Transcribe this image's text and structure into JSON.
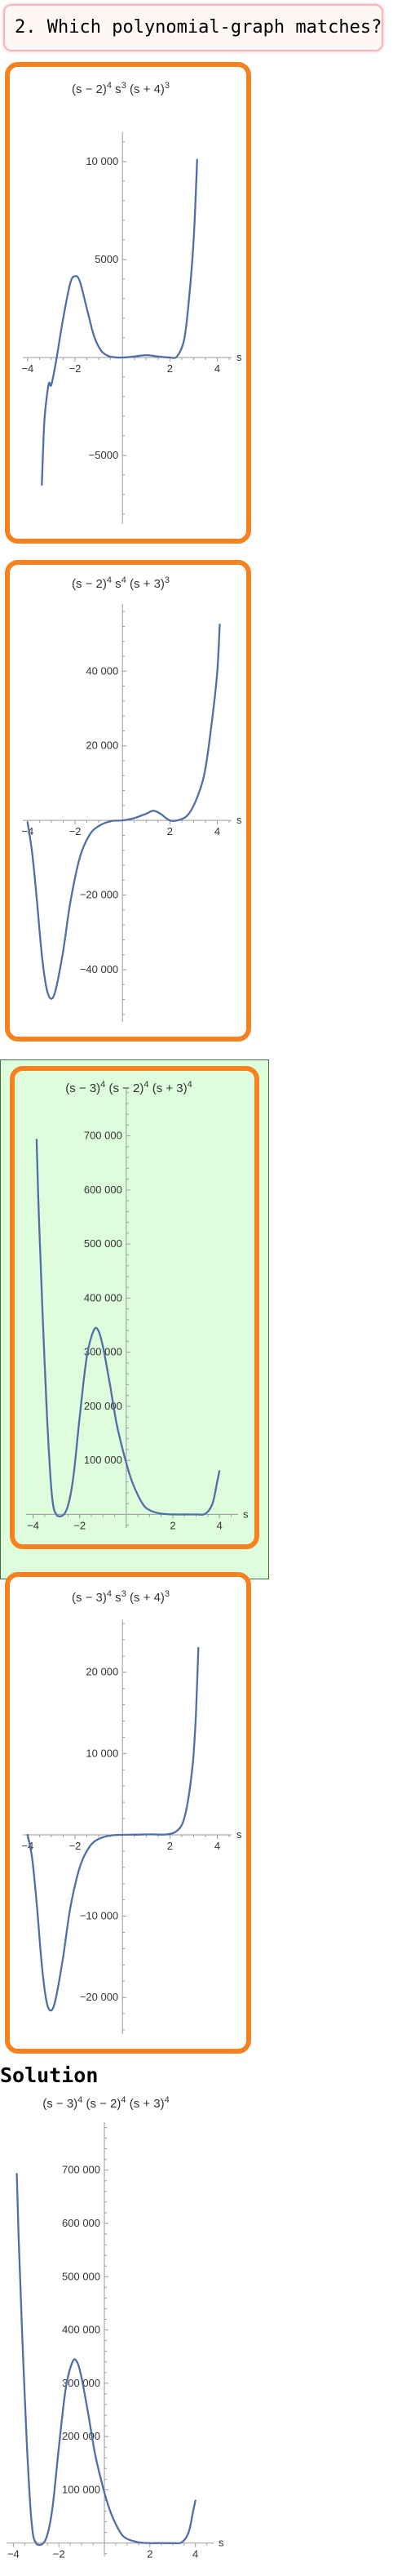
{
  "question": {
    "label": "2. Which polynomial-graph matches?"
  },
  "solution": {
    "label": "Solution"
  },
  "charts": [
    {
      "type": "line",
      "title": {
        "base": "(s − 2)",
        "exp1": "4",
        "mid1": " s",
        "exp2": "3",
        "mid2": " (s + 4)",
        "exp3": "3"
      },
      "xlabel": "s",
      "xlim": [
        -4.2,
        4.6
      ],
      "ylim": [
        -8500,
        11500
      ],
      "xticks": [
        -4,
        -2,
        2,
        4
      ],
      "xtick_labels": [
        "−4",
        "−2",
        "2",
        "4"
      ],
      "yticks": [
        10000,
        5000,
        -5000
      ],
      "ytick_labels": [
        "10 000",
        "5000",
        "−5000"
      ],
      "series": [
        {
          "points": [
            [
              -3.4,
              -6500
            ],
            [
              -3.3,
              -3400
            ],
            [
              -3.2,
              -2100
            ],
            [
              -3.1,
              -1300
            ],
            [
              -3.0,
              -1400
            ],
            [
              -2.8,
              -200
            ],
            [
              -2.5,
              2000
            ],
            [
              -2.2,
              3800
            ],
            [
              -2.0,
              4150
            ],
            [
              -1.8,
              3900
            ],
            [
              -1.5,
              2500
            ],
            [
              -1.2,
              1100
            ],
            [
              -0.9,
              350
            ],
            [
              -0.6,
              80
            ],
            [
              -0.3,
              10
            ],
            [
              0.0,
              0
            ],
            [
              0.5,
              50
            ],
            [
              1.0,
              120
            ],
            [
              1.5,
              50
            ],
            [
              2.0,
              0
            ],
            [
              2.3,
              60
            ],
            [
              2.6,
              900
            ],
            [
              2.8,
              2900
            ],
            [
              3.0,
              6000
            ],
            [
              3.15,
              10100
            ]
          ]
        }
      ]
    },
    {
      "type": "line",
      "title": {
        "base": "(s − 2)",
        "exp1": "4",
        "mid1": " s",
        "exp2": "4",
        "mid2": " (s + 3)",
        "exp3": "3"
      },
      "xlabel": "s",
      "xlim": [
        -4.2,
        4.6
      ],
      "ylim": [
        -54000,
        58000
      ],
      "xticks": [
        -4,
        -2,
        2,
        4
      ],
      "xtick_labels": [
        "−4",
        "−2",
        "2",
        "4"
      ],
      "yticks": [
        40000,
        20000,
        -20000,
        -40000
      ],
      "ytick_labels": [
        "40 000",
        "20 000",
        "−20 000",
        "−40 000"
      ],
      "series": [
        {
          "points": [
            [
              -4.0,
              -500
            ],
            [
              -3.8,
              -9000
            ],
            [
              -3.6,
              -22000
            ],
            [
              -3.4,
              -36000
            ],
            [
              -3.2,
              -45000
            ],
            [
              -3.0,
              -47800
            ],
            [
              -2.8,
              -45000
            ],
            [
              -2.5,
              -35000
            ],
            [
              -2.2,
              -22000
            ],
            [
              -1.8,
              -10000
            ],
            [
              -1.4,
              -4000
            ],
            [
              -1.0,
              -1500
            ],
            [
              -0.5,
              -200
            ],
            [
              0.0,
              0
            ],
            [
              0.5,
              600
            ],
            [
              1.0,
              1800
            ],
            [
              1.3,
              2600
            ],
            [
              1.6,
              1800
            ],
            [
              2.0,
              0
            ],
            [
              2.4,
              150
            ],
            [
              2.8,
              1800
            ],
            [
              3.2,
              7000
            ],
            [
              3.5,
              14000
            ],
            [
              3.8,
              28000
            ],
            [
              4.0,
              40000
            ],
            [
              4.1,
              52500
            ]
          ]
        }
      ]
    },
    {
      "type": "line",
      "title": {
        "base": "(s − 3)",
        "exp1": "4",
        "mid1": " (s − 2)",
        "exp2": "4",
        "mid2": " (s + 3)",
        "exp3": "4"
      },
      "xlabel": "s",
      "xlim": [
        -4.3,
        4.8
      ],
      "ylim": [
        -25000,
        790000
      ],
      "xticks": [
        -4,
        -2,
        2,
        4
      ],
      "xtick_labels": [
        "−4",
        "−2",
        "2",
        "4"
      ],
      "yticks": [
        100000,
        200000,
        300000,
        400000,
        500000,
        600000,
        700000
      ],
      "ytick_labels": [
        "100 000",
        "200 000",
        "300 000",
        "400 000",
        "500 000",
        "600 000",
        "700 000"
      ],
      "series": [
        {
          "points": [
            [
              -3.85,
              693000
            ],
            [
              -3.75,
              550000
            ],
            [
              -3.6,
              380000
            ],
            [
              -3.4,
              180000
            ],
            [
              -3.2,
              40000
            ],
            [
              -3.0,
              0
            ],
            [
              -2.6,
              5000
            ],
            [
              -2.3,
              60000
            ],
            [
              -2.0,
              180000
            ],
            [
              -1.7,
              290000
            ],
            [
              -1.4,
              340000
            ],
            [
              -1.2,
              340000
            ],
            [
              -1.0,
              310000
            ],
            [
              -0.7,
              240000
            ],
            [
              -0.4,
              165000
            ],
            [
              0.0,
              95000
            ],
            [
              0.3,
              55000
            ],
            [
              0.7,
              20000
            ],
            [
              1.0,
              8000
            ],
            [
              1.5,
              1500
            ],
            [
              2.0,
              0
            ],
            [
              2.5,
              100
            ],
            [
              3.0,
              0
            ],
            [
              3.4,
              1500
            ],
            [
              3.7,
              20000
            ],
            [
              3.9,
              60000
            ],
            [
              4.0,
              80000
            ]
          ]
        }
      ]
    },
    {
      "type": "line",
      "title": {
        "base": "(s − 3)",
        "exp1": "4",
        "mid1": " s",
        "exp2": "3",
        "mid2": " (s + 4)",
        "exp3": "3"
      },
      "xlabel": "s",
      "xlim": [
        -4.2,
        4.6
      ],
      "ylim": [
        -24500,
        26500
      ],
      "xticks": [
        -4,
        -2,
        2,
        4
      ],
      "xtick_labels": [
        "−4",
        "−2",
        "2",
        "4"
      ],
      "yticks": [
        20000,
        10000,
        -10000,
        -20000
      ],
      "ytick_labels": [
        "20 000",
        "10 000",
        "−10 000",
        "−20 000"
      ],
      "series": [
        {
          "points": [
            [
              -4.0,
              0
            ],
            [
              -3.8,
              -3000
            ],
            [
              -3.6,
              -9000
            ],
            [
              -3.4,
              -16000
            ],
            [
              -3.2,
              -20500
            ],
            [
              -3.0,
              -21600
            ],
            [
              -2.8,
              -20000
            ],
            [
              -2.5,
              -15000
            ],
            [
              -2.2,
              -9000
            ],
            [
              -1.8,
              -4000
            ],
            [
              -1.4,
              -1500
            ],
            [
              -1.0,
              -500
            ],
            [
              -0.5,
              -80
            ],
            [
              0.0,
              0
            ],
            [
              0.6,
              30
            ],
            [
              1.2,
              60
            ],
            [
              1.8,
              40
            ],
            [
              2.2,
              300
            ],
            [
              2.5,
              1200
            ],
            [
              2.7,
              3200
            ],
            [
              2.9,
              7000
            ],
            [
              3.0,
              10000
            ],
            [
              3.1,
              15000
            ],
            [
              3.2,
              23000
            ]
          ]
        }
      ]
    }
  ]
}
